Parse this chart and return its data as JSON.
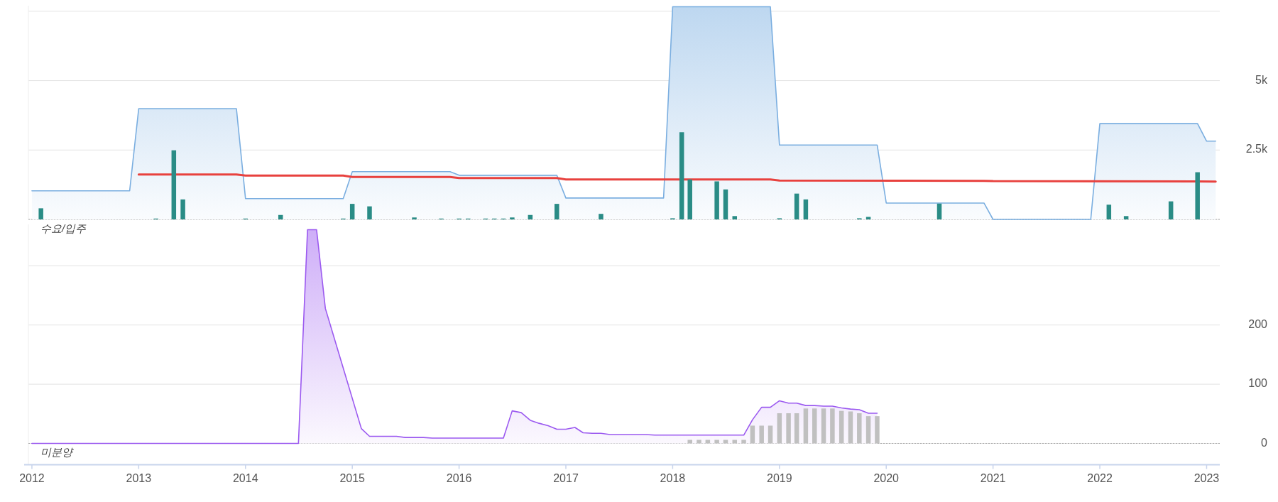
{
  "chart_data": [
    {
      "type": "area",
      "title": "수요/입주",
      "xlim": [
        "2011-12-20",
        "2023-02-15"
      ],
      "xticks": [
        "2012",
        "2013",
        "2014",
        "2015",
        "2016",
        "2017",
        "2018",
        "2019",
        "2020",
        "2021",
        "2022",
        "2023"
      ],
      "ylim": [
        0,
        7700
      ],
      "yticks": [
        {
          "value": 0,
          "label": null
        },
        {
          "value": 2500,
          "label": "2.5k"
        },
        {
          "value": 5000,
          "label": "5k"
        },
        {
          "value": 7500,
          "label": null
        }
      ],
      "grid": "y",
      "ref_lines": [
        {
          "axis": "y",
          "value": 0,
          "color": "#aaaaaa",
          "line_style": "dotted"
        }
      ],
      "tick_labels": "y",
      "series": [
        {
          "color": "#7aaee0",
          "x": [
            "2012-01",
            "2012-12",
            "2013-01",
            "2013-12",
            "2014-01",
            "2014-12",
            "2015-01",
            "2015-12",
            "2016-01",
            "2016-12",
            "2017-01",
            "2017-12",
            "2018-01",
            "2018-12",
            "2019-01",
            "2019-12",
            "2020-01",
            "2020-12",
            "2021-01",
            "2021-12",
            "2022-01",
            "2022-12",
            "2023-01",
            "2023-02"
          ],
          "values": [
            1030,
            1030,
            3990,
            3990,
            750,
            750,
            1720,
            1720,
            1590,
            1590,
            770,
            770,
            7660,
            7660,
            2680,
            2680,
            590,
            590,
            0,
            0,
            3450,
            3450,
            2820,
            2820
          ]
        },
        {
          "type": "line",
          "color": "#e8413e",
          "x": [
            "2013-01",
            "2013-12",
            "2014-01",
            "2014-12",
            "2015-01",
            "2015-12",
            "2016-01",
            "2016-12",
            "2017-01",
            "2018-12",
            "2019-01",
            "2020-12",
            "2021-01",
            "2022-12",
            "2023-02"
          ],
          "values": [
            1620,
            1620,
            1580,
            1580,
            1530,
            1530,
            1490,
            1490,
            1440,
            1440,
            1400,
            1390,
            1380,
            1370,
            1360
          ]
        },
        {
          "type": "bar",
          "color": "#2a8c86",
          "x": [
            "2012-02",
            "2013-03",
            "2013-05",
            "2013-06",
            "2014-01",
            "2014-05",
            "2014-12",
            "2015-01",
            "2015-03",
            "2015-08",
            "2015-11",
            "2016-01",
            "2016-02",
            "2016-04",
            "2016-05",
            "2016-06",
            "2016-07",
            "2016-09",
            "2016-12",
            "2017-05",
            "2018-01",
            "2018-02",
            "2018-03",
            "2018-06",
            "2018-07",
            "2018-08",
            "2019-01",
            "2019-03",
            "2019-04",
            "2019-10",
            "2019-11",
            "2020-07",
            "2022-02",
            "2022-04",
            "2022-09",
            "2022-12"
          ],
          "values": [
            400,
            30,
            2490,
            720,
            30,
            160,
            30,
            560,
            470,
            70,
            30,
            30,
            30,
            30,
            30,
            30,
            70,
            160,
            560,
            200,
            40,
            3140,
            1440,
            1370,
            1080,
            120,
            40,
            930,
            720,
            40,
            90,
            570,
            530,
            120,
            650,
            1700
          ]
        }
      ]
    },
    {
      "type": "area",
      "title": "미분양",
      "xlim": [
        "2011-12-20",
        "2023-02-15"
      ],
      "xticks": [
        "2012",
        "2013",
        "2014",
        "2015",
        "2016",
        "2017",
        "2018",
        "2019",
        "2020",
        "2021",
        "2022",
        "2023"
      ],
      "ylim": [
        -36,
        370
      ],
      "yticks": [
        {
          "value": 0,
          "label": "0"
        },
        {
          "value": 100,
          "label": "100"
        },
        {
          "value": 200,
          "label": "200"
        },
        {
          "value": 300,
          "label": null
        }
      ],
      "grid": "y",
      "ref_lines": [
        {
          "axis": "y",
          "value": 0,
          "color": "#aaaaaa",
          "line_style": "dotted"
        }
      ],
      "series": [
        {
          "color": "#9b59f0",
          "x": [
            "2012-01",
            "2014-07",
            "2014-08",
            "2014-09",
            "2014-10",
            "2015-02",
            "2015-03",
            "2015-06",
            "2015-07",
            "2015-09",
            "2015-10",
            "2016-06",
            "2016-07",
            "2016-08",
            "2016-09",
            "2016-10",
            "2016-11",
            "2016-12",
            "2017-01",
            "2017-02",
            "2017-03",
            "2017-04",
            "2017-05",
            "2017-06",
            "2017-10",
            "2017-11",
            "2018-09",
            "2018-10",
            "2018-11",
            "2018-12",
            "2019-01",
            "2019-02",
            "2019-03",
            "2019-04",
            "2019-05",
            "2019-06",
            "2019-07",
            "2019-08",
            "2019-09",
            "2019-10",
            "2019-11",
            "2019-12"
          ],
          "values": [
            0,
            0,
            361,
            361,
            228,
            25,
            12,
            12,
            10,
            10,
            9,
            9,
            55,
            52,
            39,
            34,
            30,
            24,
            24,
            27,
            18,
            17,
            17,
            15,
            15,
            14,
            14,
            40,
            61,
            61,
            72,
            68,
            68,
            64,
            64,
            63,
            63,
            60,
            58,
            57,
            51,
            51
          ]
        },
        {
          "type": "bar",
          "color": "#c0c0c0",
          "x": [
            "2018-03",
            "2018-04",
            "2018-05",
            "2018-06",
            "2018-07",
            "2018-08",
            "2018-09",
            "2018-10",
            "2018-11",
            "2018-12",
            "2019-01",
            "2019-02",
            "2019-03",
            "2019-04",
            "2019-05",
            "2019-06",
            "2019-07",
            "2019-08",
            "2019-09",
            "2019-10",
            "2019-11",
            "2019-12"
          ],
          "values": [
            6,
            6,
            6,
            6,
            6,
            6,
            6,
            30,
            30,
            30,
            51,
            51,
            51,
            59,
            59,
            59,
            59,
            55,
            54,
            51,
            46,
            46
          ]
        }
      ]
    }
  ]
}
